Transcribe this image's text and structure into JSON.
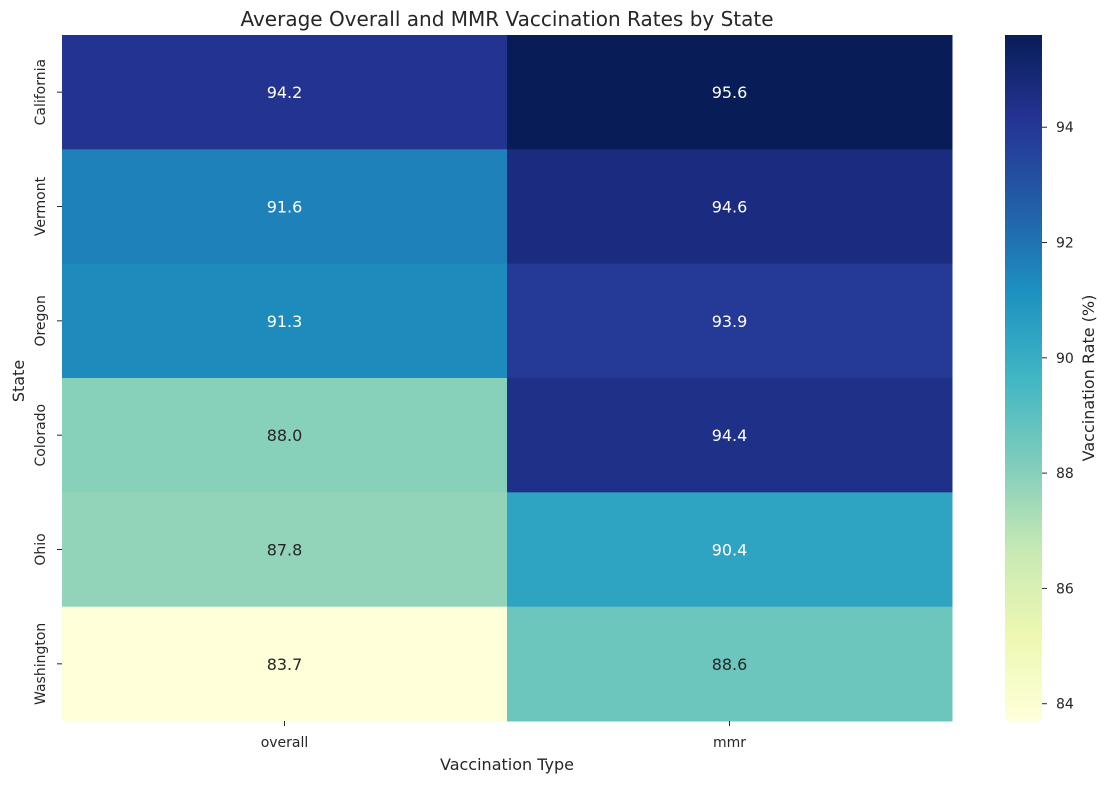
{
  "chart_data": {
    "type": "heatmap",
    "title": "Average Overall and MMR Vaccination Rates by State",
    "xlabel": "Vaccination Type",
    "ylabel": "State",
    "x_categories": [
      "overall",
      "mmr"
    ],
    "y_categories": [
      "California",
      "Vermont",
      "Oregon",
      "Colorado",
      "Ohio",
      "Washington"
    ],
    "values": [
      [
        94.2,
        95.6
      ],
      [
        91.6,
        94.6
      ],
      [
        91.3,
        93.9
      ],
      [
        88.0,
        94.4
      ],
      [
        87.8,
        90.4
      ],
      [
        83.7,
        88.6
      ]
    ],
    "colorbar": {
      "label": "Vaccination Rate (%)",
      "colormap": "YlGnBu",
      "range": [
        83.7,
        95.6
      ],
      "ticks": [
        84,
        86,
        88,
        90,
        92,
        94
      ]
    },
    "annotations": true,
    "grid": false
  }
}
